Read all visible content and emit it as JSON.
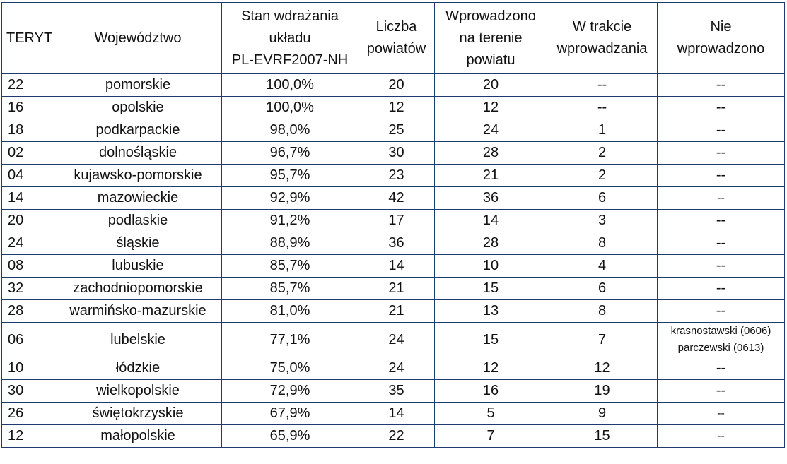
{
  "headers": {
    "teryt": "TERYT",
    "wojewodztwo": "Województwo",
    "stan_l1": "Stan wdrażania",
    "stan_l2": "układu",
    "stan_l3": "PL-EVRF2007-NH",
    "liczba_l1": "Liczba",
    "liczba_l2": "powiatów",
    "wprow_l1": "Wprowadzono",
    "wprow_l2": "na terenie",
    "wprow_l3": "powiatu",
    "trakcie_l1": "W trakcie",
    "trakcie_l2": "wprowadzania",
    "nie_l1": "Nie",
    "nie_l2": "wprowadzono"
  },
  "rows": [
    {
      "teryt": "22",
      "name": "pomorskie",
      "stan": "100,0%",
      "liczba": "20",
      "wprowadzono": "20",
      "w_trakcie": "--",
      "nie": "--"
    },
    {
      "teryt": "16",
      "name": "opolskie",
      "stan": "100,0%",
      "liczba": "12",
      "wprowadzono": "12",
      "w_trakcie": "--",
      "nie": "--"
    },
    {
      "teryt": "18",
      "name": "podkarpackie",
      "stan": "98,0%",
      "liczba": "25",
      "wprowadzono": "24",
      "w_trakcie": "1",
      "nie": "--"
    },
    {
      "teryt": "02",
      "name": "dolnośląskie",
      "stan": "96,7%",
      "liczba": "30",
      "wprowadzono": "28",
      "w_trakcie": "2",
      "nie": "--"
    },
    {
      "teryt": "04",
      "name": "kujawsko-pomorskie",
      "stan": "95,7%",
      "liczba": "23",
      "wprowadzono": "21",
      "w_trakcie": "2",
      "nie": "--"
    },
    {
      "teryt": "14",
      "name": "mazowieckie",
      "stan": "92,9%",
      "liczba": "42",
      "wprowadzono": "36",
      "w_trakcie": "6",
      "nie": "--"
    },
    {
      "teryt": "20",
      "name": "podlaskie",
      "stan": "91,2%",
      "liczba": "17",
      "wprowadzono": "14",
      "w_trakcie": "3",
      "nie": "--"
    },
    {
      "teryt": "24",
      "name": "śląskie",
      "stan": "88,9%",
      "liczba": "36",
      "wprowadzono": "28",
      "w_trakcie": "8",
      "nie": "--"
    },
    {
      "teryt": "08",
      "name": "lubuskie",
      "stan": "85,7%",
      "liczba": "14",
      "wprowadzono": "10",
      "w_trakcie": "4",
      "nie": "--"
    },
    {
      "teryt": "32",
      "name": "zachodniopomorskie",
      "stan": "85,7%",
      "liczba": "21",
      "wprowadzono": "15",
      "w_trakcie": "6",
      "nie": "--"
    },
    {
      "teryt": "28",
      "name": "warmińsko-mazurskie",
      "stan": "81,0%",
      "liczba": "21",
      "wprowadzono": "13",
      "w_trakcie": "8",
      "nie": "--"
    },
    {
      "teryt": "06",
      "name": "lubelskie",
      "stan": "77,1%",
      "liczba": "24",
      "wprowadzono": "15",
      "w_trakcie": "7",
      "nie_l1": "krasnostawski (0606)",
      "nie_l2": "parczewski (0613)"
    },
    {
      "teryt": "10",
      "name": "łódzkie",
      "stan": "75,0%",
      "liczba": "24",
      "wprowadzono": "12",
      "w_trakcie": "12",
      "nie": "--"
    },
    {
      "teryt": "30",
      "name": "wielkopolskie",
      "stan": "72,9%",
      "liczba": "35",
      "wprowadzono": "16",
      "w_trakcie": "19",
      "nie": "--"
    },
    {
      "teryt": "26",
      "name": "świętokrzyskie",
      "stan": "67,9%",
      "liczba": "14",
      "wprowadzono": "5",
      "w_trakcie": "9",
      "nie": "--"
    },
    {
      "teryt": "12",
      "name": "małopolskie",
      "stan": "65,9%",
      "liczba": "22",
      "wprowadzono": "7",
      "w_trakcie": "15",
      "nie": "--"
    }
  ]
}
